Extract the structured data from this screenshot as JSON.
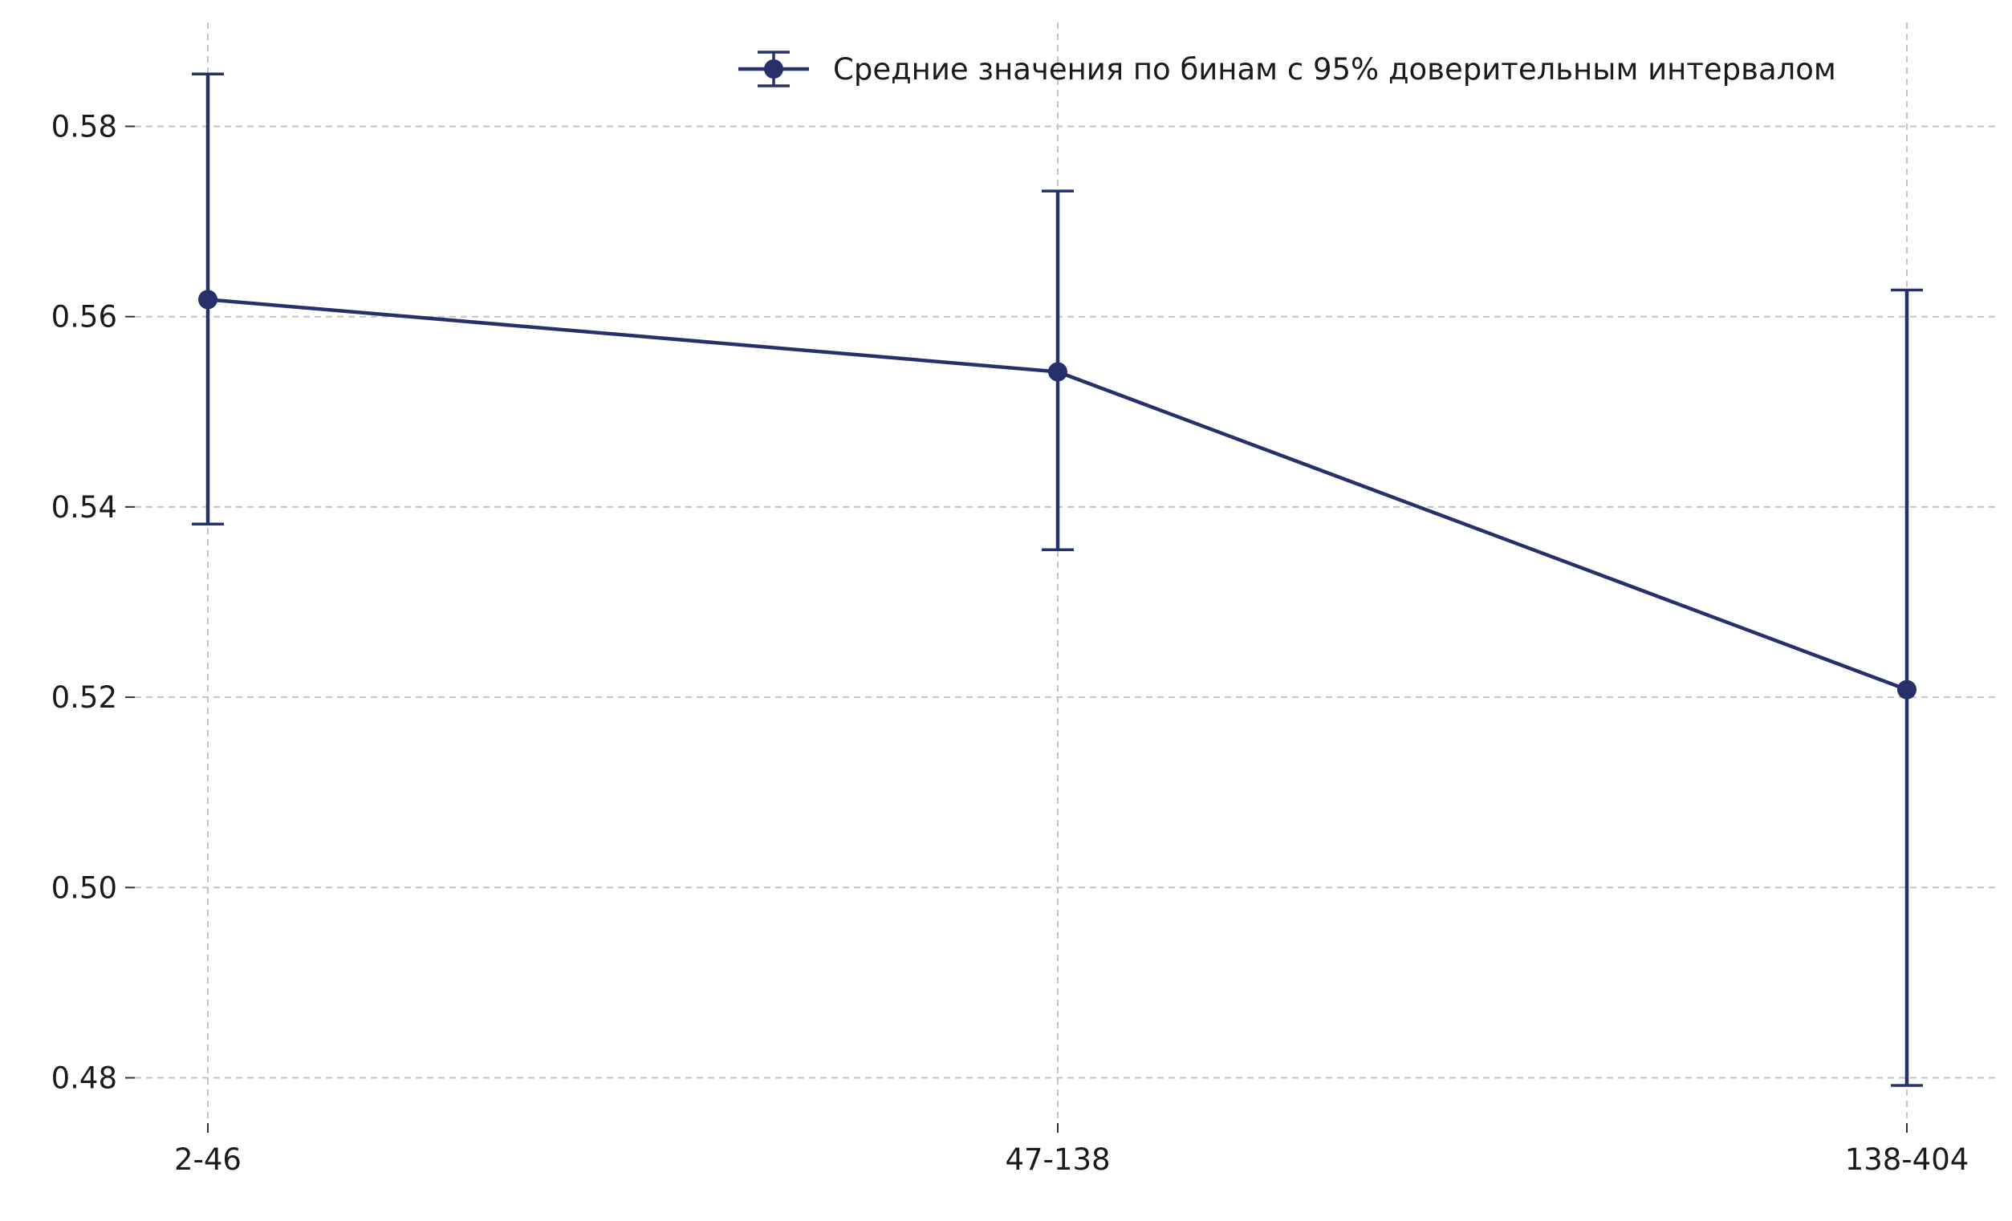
{
  "chart_data": {
    "type": "line",
    "title": "",
    "xlabel": "",
    "ylabel": "",
    "categories": [
      "2-46",
      "47-138",
      "138-404"
    ],
    "series": [
      {
        "name": "Средние значения по бинам с 95% доверительным интервалом",
        "values": [
          0.5618,
          0.5542,
          0.5208
        ],
        "ci_lower": [
          0.5382,
          0.5355,
          0.4792
        ],
        "ci_upper": [
          0.5855,
          0.5732,
          0.5628
        ],
        "color": "#27306a"
      }
    ],
    "yticks": [
      0.48,
      0.5,
      0.52,
      0.54,
      0.56,
      0.58
    ],
    "ytick_labels": [
      "0.48",
      "0.50",
      "0.52",
      "0.54",
      "0.56",
      "0.58"
    ],
    "ylim": [
      0.4733,
      0.5905
    ],
    "grid": true,
    "grid_style": "dashed",
    "legend_position": "top-right"
  }
}
